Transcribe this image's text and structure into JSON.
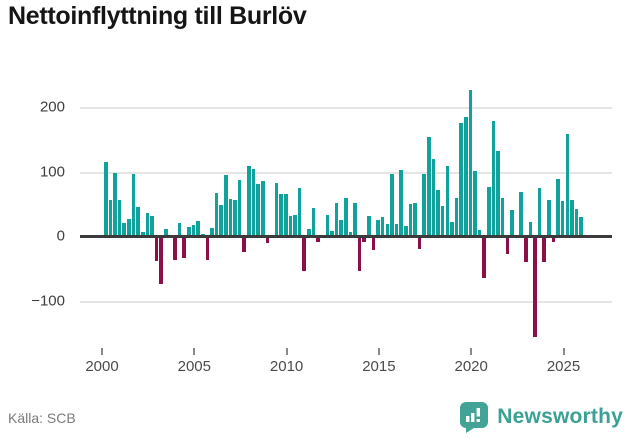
{
  "title": "Nettoinflyttning till Burlöv",
  "source": "Källa: SCB",
  "branding": {
    "name": "Newsworthy",
    "icon_color": "#43a396",
    "text_color": "#3ba194"
  },
  "chart_data": {
    "type": "bar",
    "title": "Nettoinflyttning till Burlöv",
    "frequency": "quarterly",
    "start": "2000Q1",
    "end": "2025Q4",
    "values": [
      117,
      57,
      100,
      57,
      21,
      28,
      97,
      46,
      8,
      37,
      32,
      -37,
      -73,
      13,
      3,
      -36,
      22,
      -33,
      16,
      18,
      25,
      4,
      -35,
      14,
      68,
      50,
      96,
      59,
      57,
      88,
      -23,
      110,
      105,
      82,
      87,
      -10,
      2,
      83,
      66,
      66,
      32,
      34,
      76,
      -52,
      12,
      45,
      -7,
      -2,
      34,
      9,
      53,
      27,
      61,
      8,
      52,
      -52,
      -8,
      32,
      -20,
      26,
      31,
      20,
      97,
      20,
      104,
      17,
      51,
      53,
      -18,
      97,
      155,
      121,
      73,
      48,
      110,
      23,
      60,
      177,
      186,
      228,
      102,
      11,
      -64,
      78,
      180,
      133,
      60,
      -26,
      42,
      2,
      70,
      -38,
      23,
      -155,
      76,
      -39,
      57,
      -8,
      90,
      56,
      159,
      57,
      43,
      31
    ],
    "x_tick_labels": [
      "2000",
      "2005",
      "2010",
      "2015",
      "2020",
      "2025"
    ],
    "y_tick_labels": [
      "200",
      "100",
      "0",
      "−100"
    ],
    "y_ticks": [
      200,
      100,
      0,
      -100
    ],
    "ylim": [
      -170,
      245
    ],
    "grid": true,
    "legend": false,
    "colors": {
      "positive": "#11a29b",
      "negative": "#8c1048",
      "gridline": "#e5e5e5",
      "zero_axis": "#3b3b3b"
    }
  }
}
